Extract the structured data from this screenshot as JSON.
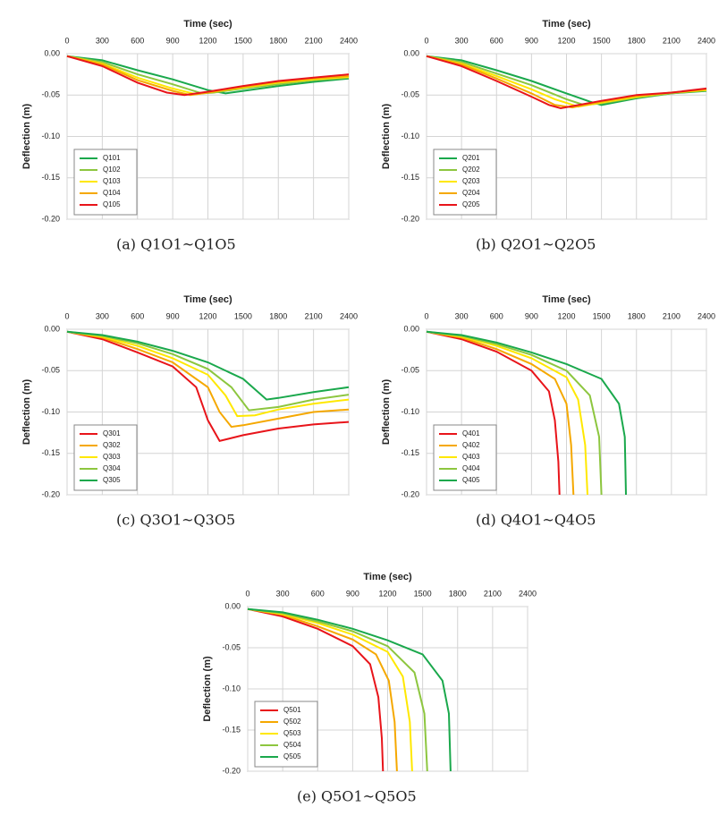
{
  "chart_data": [
    {
      "type": "line",
      "x_label": "Time (sec)",
      "y_label": "Deflection (m)",
      "caption": "(a) Q1O1~Q1O5",
      "grid": true,
      "legend": "lower left",
      "xlim": [
        0,
        2400
      ],
      "xticks": [
        0,
        300,
        600,
        900,
        1200,
        1500,
        1800,
        2100,
        2400
      ],
      "ylim": [
        -0.2,
        0
      ],
      "yticks": [
        {
          "value": 0,
          "label": "0.00"
        },
        {
          "value": -0.05,
          "label": "-0.05"
        },
        {
          "value": -0.1,
          "label": "-0.10"
        },
        {
          "value": -0.15,
          "label": "-0.15"
        },
        {
          "value": -0.2,
          "label": "-0.20"
        }
      ],
      "series": [
        {
          "name": "Q101",
          "color": "#1aa84c",
          "x": [
            0,
            300,
            600,
            900,
            1200,
            1350,
            1500,
            1800,
            2100,
            2400
          ],
          "values": [
            -0.003,
            -0.008,
            -0.02,
            -0.031,
            -0.044,
            -0.048,
            -0.045,
            -0.039,
            -0.034,
            -0.03
          ]
        },
        {
          "name": "Q102",
          "color": "#8dc63f",
          "x": [
            0,
            300,
            600,
            900,
            1150,
            1250,
            1500,
            1800,
            2100,
            2400
          ],
          "values": [
            -0.003,
            -0.01,
            -0.025,
            -0.037,
            -0.048,
            -0.047,
            -0.042,
            -0.037,
            -0.032,
            -0.029
          ]
        },
        {
          "name": "Q103",
          "color": "#ffe800",
          "x": [
            0,
            300,
            600,
            900,
            1100,
            1200,
            1500,
            1800,
            2100,
            2400
          ],
          "values": [
            -0.003,
            -0.012,
            -0.029,
            -0.042,
            -0.049,
            -0.047,
            -0.041,
            -0.035,
            -0.031,
            -0.028
          ]
        },
        {
          "name": "Q104",
          "color": "#f5a800",
          "x": [
            0,
            300,
            600,
            900,
            1050,
            1200,
            1500,
            1800,
            2100,
            2400
          ],
          "values": [
            -0.003,
            -0.013,
            -0.032,
            -0.045,
            -0.05,
            -0.047,
            -0.04,
            -0.034,
            -0.03,
            -0.027
          ]
        },
        {
          "name": "Q105",
          "color": "#e8141a",
          "x": [
            0,
            300,
            600,
            850,
            1000,
            1200,
            1500,
            1800,
            2100,
            2400
          ],
          "values": [
            -0.003,
            -0.015,
            -0.035,
            -0.047,
            -0.05,
            -0.046,
            -0.039,
            -0.033,
            -0.029,
            -0.025
          ]
        }
      ]
    },
    {
      "type": "line",
      "x_label": "Time (sec)",
      "y_label": "Deflection (m)",
      "caption": "(b) Q2O1~Q2O5",
      "grid": true,
      "legend": "lower left",
      "xlim": [
        0,
        2400
      ],
      "xticks": [
        0,
        300,
        600,
        900,
        1200,
        1500,
        1800,
        2100,
        2400
      ],
      "ylim": [
        -0.2,
        0
      ],
      "yticks": [
        {
          "value": 0,
          "label": "0.00"
        },
        {
          "value": -0.05,
          "label": "-0.05"
        },
        {
          "value": -0.1,
          "label": "-0.10"
        },
        {
          "value": -0.15,
          "label": "-0.15"
        },
        {
          "value": -0.2,
          "label": "-0.20"
        }
      ],
      "series": [
        {
          "name": "Q201",
          "color": "#1aa84c",
          "x": [
            0,
            300,
            600,
            900,
            1200,
            1400,
            1500,
            1800,
            2100,
            2400
          ],
          "values": [
            -0.003,
            -0.008,
            -0.02,
            -0.033,
            -0.048,
            -0.058,
            -0.062,
            -0.054,
            -0.048,
            -0.045
          ]
        },
        {
          "name": "Q202",
          "color": "#8dc63f",
          "x": [
            0,
            300,
            600,
            900,
            1200,
            1350,
            1500,
            1800,
            2100,
            2400
          ],
          "values": [
            -0.003,
            -0.01,
            -0.024,
            -0.038,
            -0.055,
            -0.062,
            -0.06,
            -0.053,
            -0.048,
            -0.044
          ]
        },
        {
          "name": "Q203",
          "color": "#ffe800",
          "x": [
            0,
            300,
            600,
            900,
            1100,
            1300,
            1500,
            1800,
            2100,
            2400
          ],
          "values": [
            -0.003,
            -0.012,
            -0.027,
            -0.043,
            -0.055,
            -0.064,
            -0.059,
            -0.052,
            -0.047,
            -0.044
          ]
        },
        {
          "name": "Q204",
          "color": "#f5a800",
          "x": [
            0,
            300,
            600,
            900,
            1100,
            1250,
            1500,
            1800,
            2100,
            2400
          ],
          "values": [
            -0.003,
            -0.013,
            -0.03,
            -0.048,
            -0.062,
            -0.065,
            -0.058,
            -0.051,
            -0.047,
            -0.043
          ]
        },
        {
          "name": "Q205",
          "color": "#e8141a",
          "x": [
            0,
            300,
            600,
            900,
            1050,
            1150,
            1500,
            1800,
            2100,
            2400
          ],
          "values": [
            -0.003,
            -0.015,
            -0.033,
            -0.052,
            -0.062,
            -0.066,
            -0.057,
            -0.05,
            -0.047,
            -0.042
          ]
        }
      ]
    },
    {
      "type": "line",
      "x_label": "Time (sec)",
      "y_label": "Deflection (m)",
      "caption": "(c) Q3O1~Q3O5",
      "grid": true,
      "legend": "lower left",
      "xlim": [
        0,
        2400
      ],
      "xticks": [
        0,
        300,
        600,
        900,
        1200,
        1500,
        1800,
        2100,
        2400
      ],
      "ylim": [
        -0.2,
        0
      ],
      "yticks": [
        {
          "value": 0,
          "label": "0.00"
        },
        {
          "value": -0.05,
          "label": "-0.05"
        },
        {
          "value": -0.1,
          "label": "-0.10"
        },
        {
          "value": -0.15,
          "label": "-0.15"
        },
        {
          "value": -0.2,
          "label": "-0.20"
        }
      ],
      "series": [
        {
          "name": "Q301",
          "color": "#e8141a",
          "x": [
            0,
            300,
            600,
            900,
            1100,
            1200,
            1300,
            1500,
            1800,
            2100,
            2400
          ],
          "values": [
            -0.003,
            -0.012,
            -0.028,
            -0.045,
            -0.07,
            -0.11,
            -0.135,
            -0.128,
            -0.12,
            -0.115,
            -0.112
          ]
        },
        {
          "name": "Q302",
          "color": "#f5a800",
          "x": [
            0,
            300,
            600,
            900,
            1200,
            1300,
            1400,
            1500,
            1800,
            2100,
            2400
          ],
          "values": [
            -0.003,
            -0.01,
            -0.024,
            -0.04,
            -0.07,
            -0.1,
            -0.118,
            -0.116,
            -0.108,
            -0.1,
            -0.097
          ]
        },
        {
          "name": "Q303",
          "color": "#ffe800",
          "x": [
            0,
            300,
            600,
            900,
            1200,
            1350,
            1450,
            1600,
            1800,
            2100,
            2400
          ],
          "values": [
            -0.003,
            -0.009,
            -0.02,
            -0.035,
            -0.055,
            -0.08,
            -0.105,
            -0.104,
            -0.097,
            -0.09,
            -0.085
          ]
        },
        {
          "name": "Q304",
          "color": "#8dc63f",
          "x": [
            0,
            300,
            600,
            900,
            1200,
            1400,
            1550,
            1800,
            2100,
            2400
          ],
          "values": [
            -0.003,
            -0.008,
            -0.017,
            -0.03,
            -0.048,
            -0.07,
            -0.098,
            -0.094,
            -0.085,
            -0.079
          ]
        },
        {
          "name": "Q305",
          "color": "#1aa84c",
          "x": [
            0,
            300,
            600,
            900,
            1200,
            1500,
            1700,
            1800,
            2100,
            2400
          ],
          "values": [
            -0.003,
            -0.007,
            -0.015,
            -0.026,
            -0.04,
            -0.06,
            -0.085,
            -0.083,
            -0.076,
            -0.07
          ]
        }
      ]
    },
    {
      "type": "line",
      "x_label": "Time (sec)",
      "y_label": "Deflection (m)",
      "caption": "(d) Q4O1~Q4O5",
      "grid": true,
      "legend": "lower left",
      "xlim": [
        0,
        2400
      ],
      "xticks": [
        0,
        300,
        600,
        900,
        1200,
        1500,
        1800,
        2100,
        2400
      ],
      "ylim": [
        -0.2,
        0
      ],
      "yticks": [
        {
          "value": 0,
          "label": "0.00"
        },
        {
          "value": -0.05,
          "label": "-0.05"
        },
        {
          "value": -0.1,
          "label": "-0.10"
        },
        {
          "value": -0.15,
          "label": "-0.15"
        },
        {
          "value": -0.2,
          "label": "-0.20"
        }
      ],
      "series": [
        {
          "name": "Q401",
          "color": "#e8141a",
          "x": [
            0,
            300,
            600,
            900,
            1050,
            1100,
            1130,
            1140
          ],
          "values": [
            -0.003,
            -0.012,
            -0.027,
            -0.05,
            -0.075,
            -0.11,
            -0.16,
            -0.2
          ]
        },
        {
          "name": "Q402",
          "color": "#f5a800",
          "x": [
            0,
            300,
            600,
            900,
            1100,
            1200,
            1240,
            1260
          ],
          "values": [
            -0.003,
            -0.01,
            -0.024,
            -0.042,
            -0.06,
            -0.09,
            -0.14,
            -0.2
          ]
        },
        {
          "name": "Q403",
          "color": "#ffe800",
          "x": [
            0,
            300,
            600,
            900,
            1200,
            1300,
            1360,
            1380
          ],
          "values": [
            -0.003,
            -0.009,
            -0.02,
            -0.035,
            -0.058,
            -0.085,
            -0.14,
            -0.2
          ]
        },
        {
          "name": "Q404",
          "color": "#8dc63f",
          "x": [
            0,
            300,
            600,
            900,
            1200,
            1400,
            1480,
            1500
          ],
          "values": [
            -0.003,
            -0.008,
            -0.018,
            -0.031,
            -0.05,
            -0.08,
            -0.13,
            -0.2
          ]
        },
        {
          "name": "Q405",
          "color": "#1aa84c",
          "x": [
            0,
            300,
            600,
            900,
            1200,
            1500,
            1650,
            1700,
            1710
          ],
          "values": [
            -0.003,
            -0.007,
            -0.016,
            -0.028,
            -0.042,
            -0.06,
            -0.09,
            -0.13,
            -0.2
          ]
        }
      ]
    },
    {
      "type": "line",
      "x_label": "Time (sec)",
      "y_label": "Deflection (m)",
      "caption": "(e) Q5O1~Q5O5",
      "grid": true,
      "legend": "lower left",
      "xlim": [
        0,
        2400
      ],
      "xticks": [
        0,
        300,
        600,
        900,
        1200,
        1500,
        1800,
        2100,
        2400
      ],
      "ylim": [
        -0.2,
        0
      ],
      "yticks": [
        {
          "value": 0,
          "label": "0.00"
        },
        {
          "value": -0.05,
          "label": "-0.05"
        },
        {
          "value": -0.1,
          "label": "-0.10"
        },
        {
          "value": -0.15,
          "label": "-0.15"
        },
        {
          "value": -0.2,
          "label": "-0.20"
        }
      ],
      "series": [
        {
          "name": "Q501",
          "color": "#e8141a",
          "x": [
            0,
            300,
            600,
            900,
            1050,
            1120,
            1150,
            1160
          ],
          "values": [
            -0.003,
            -0.012,
            -0.027,
            -0.048,
            -0.07,
            -0.11,
            -0.16,
            -0.2
          ]
        },
        {
          "name": "Q502",
          "color": "#f5a800",
          "x": [
            0,
            300,
            600,
            900,
            1100,
            1210,
            1260,
            1280
          ],
          "values": [
            -0.003,
            -0.01,
            -0.024,
            -0.04,
            -0.058,
            -0.09,
            -0.14,
            -0.2
          ]
        },
        {
          "name": "Q503",
          "color": "#ffe800",
          "x": [
            0,
            300,
            600,
            900,
            1200,
            1330,
            1390,
            1410
          ],
          "values": [
            -0.003,
            -0.009,
            -0.02,
            -0.034,
            -0.055,
            -0.085,
            -0.14,
            -0.2
          ]
        },
        {
          "name": "Q504",
          "color": "#8dc63f",
          "x": [
            0,
            300,
            600,
            900,
            1200,
            1430,
            1515,
            1540
          ],
          "values": [
            -0.003,
            -0.008,
            -0.018,
            -0.03,
            -0.048,
            -0.08,
            -0.13,
            -0.2
          ]
        },
        {
          "name": "Q505",
          "color": "#1aa84c",
          "x": [
            0,
            300,
            600,
            900,
            1200,
            1500,
            1670,
            1725,
            1740
          ],
          "values": [
            -0.003,
            -0.007,
            -0.016,
            -0.027,
            -0.041,
            -0.058,
            -0.09,
            -0.13,
            -0.2
          ]
        }
      ]
    }
  ]
}
